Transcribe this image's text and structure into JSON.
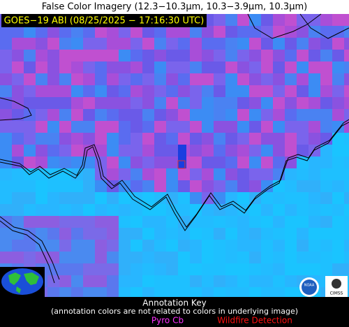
{
  "header": {
    "title": "False Color Imagery (12.3−10.3µm, 10.3−3.9µm, 10.3µm)"
  },
  "image": {
    "label": "GOES−19 ABI (08/25/2025 − 17:16:30 UTC)"
  },
  "annotation_key": {
    "title": "Annotation Key",
    "note": "(annotation colors are not related to colors in underlying image)",
    "items": [
      "Pyro Cb",
      "Wildfire Detection"
    ]
  },
  "logos": [
    "NOAA",
    "CIMSS"
  ]
}
